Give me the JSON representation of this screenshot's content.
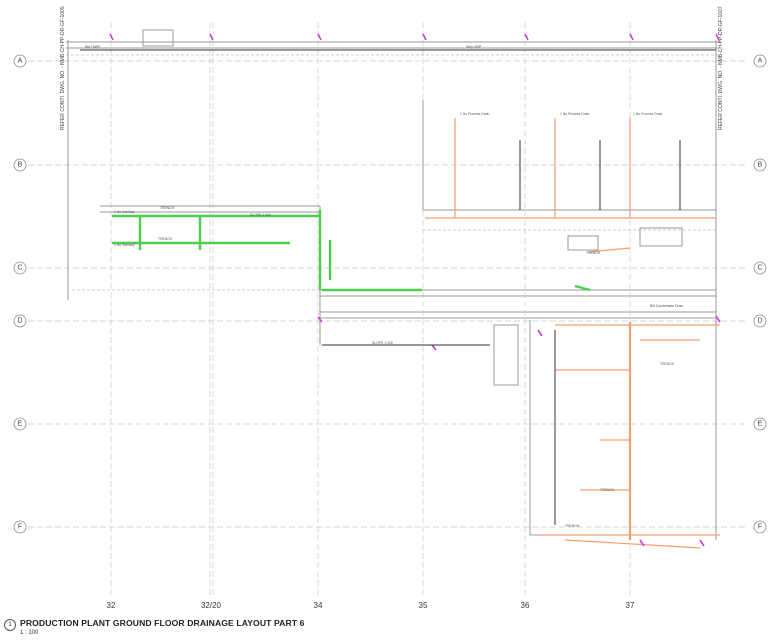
{
  "drawing": {
    "title": "PRODUCTION PLANT GROUND FLOOR DRAINAGE LAYOUT PART 6",
    "scale": "1 : 100",
    "view_number": "1",
    "refer_left": "REFER CONTI. DWG. NO. - NMB-CH-PP-DR-GF-1005",
    "refer_right": "REFER CONTI. DWG. NO. - NMB-CH-PP-DR-GF-1007"
  },
  "grid": {
    "rows": [
      "A",
      "B",
      "C",
      "D",
      "E",
      "F"
    ],
    "columns": [
      "32",
      "32/20",
      "34",
      "35",
      "36",
      "37"
    ]
  },
  "annotations": {
    "trench": "TRENCH",
    "trench_small": [
      "TRENCH",
      "TRENCH",
      "TRENCH",
      "TRENCH",
      "TRENCH",
      "TRENCH"
    ],
    "process_drain": "1 No Process Drain",
    "sanitary": "1 No Sanitary",
    "slope": "SLOPE 1:100",
    "condensate": "Bkt Condensate Drain",
    "ref_a": "Bkt TMRP",
    "ref_b": "Step GRP"
  },
  "colors": {
    "process_drain_pipe": "#f0a070",
    "sanitary_pipe": "#4ccf4c",
    "storm_pipe": "#d23cd2",
    "grid_line": "#c9c9c9"
  }
}
